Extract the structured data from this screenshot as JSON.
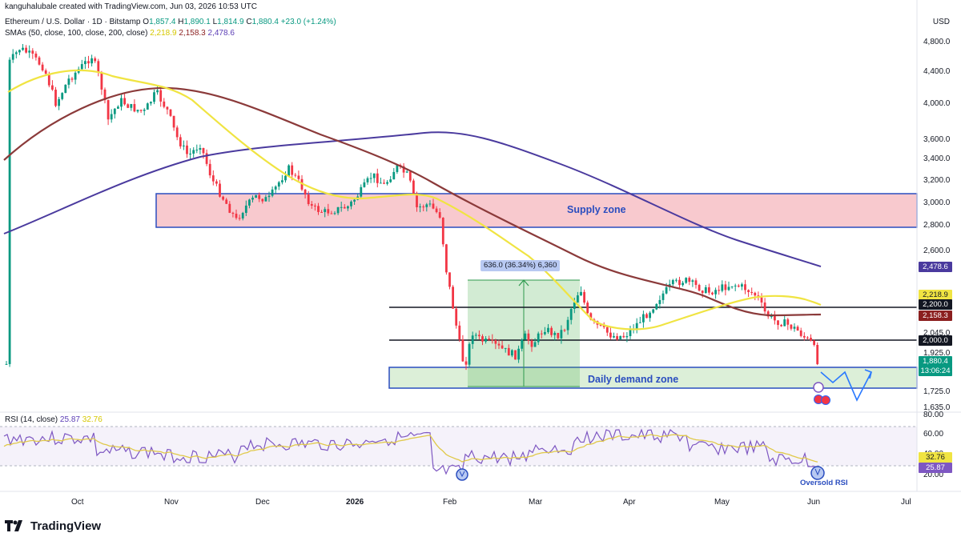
{
  "credit": "kanguhalubale created with TradingView.com, Jun 03, 2026 10:53 UTC",
  "header": {
    "symbol": "Ethereum / U.S. Dollar · 1D · Bitstamp",
    "o_label": "O",
    "o": "1,857.4",
    "h_label": "H",
    "h": "1,890.1",
    "l_label": "L",
    "l": "1,814.9",
    "c_label": "C",
    "c": "1,880.4",
    "change": "+23.0 (+1.24%)"
  },
  "sma_header": {
    "label": "SMAs (50, close, 100, close, 200, close)",
    "sma50": "2,218.9",
    "sma100": "2,158.3",
    "sma200": "2,478.6"
  },
  "rsi_header": {
    "label": "RSI (14, close)",
    "rsi": "25.87",
    "rsi_ma": "32.76"
  },
  "currency": "USD",
  "price_axis": [
    "4,800.0",
    "4,400.0",
    "4,000.0",
    "3,600.0",
    "3,400.0",
    "3,200.0",
    "3,000.0",
    "2,800.0",
    "2,600.0",
    "2,045.0",
    "1,925.0",
    "1,725.0",
    "1,635.0"
  ],
  "rsi_axis": [
    "80.00",
    "60.00",
    "40.00",
    "20.00"
  ],
  "time_axis": [
    "Oct",
    "Nov",
    "Dec",
    "2026",
    "Feb",
    "Mar",
    "Apr",
    "May",
    "Jun",
    "Jul"
  ],
  "tags": {
    "sma200": "2,478.6",
    "sma50": "2,218.9",
    "level_2200": "2,200.0",
    "sma100": "2,158.3",
    "level_2000": "2,000.0",
    "last_price": "1,880.4",
    "countdown": "13:06:24",
    "rsi_ma": "32.76",
    "rsi": "25.87"
  },
  "colors": {
    "up": "#089981",
    "down": "#f23645",
    "sma50": "#f0e442",
    "sma100": "#8b3a3a",
    "sma200": "#4a3a9e",
    "supply_zone": "#f7c6cb",
    "demand_zone": "#d8ecd4",
    "zone_border": "#2a4dbf",
    "rsi_line": "#7e57c2",
    "rsi_ma": "#e0c94a",
    "projection": "#2979ff"
  },
  "annotations": {
    "supply_zone": "Supply zone",
    "demand_zone": "Daily demand zone",
    "measure": "636.0 (36.34%) 6,360",
    "oversold": "Oversold RSI"
  },
  "brand": "TradingView"
}
